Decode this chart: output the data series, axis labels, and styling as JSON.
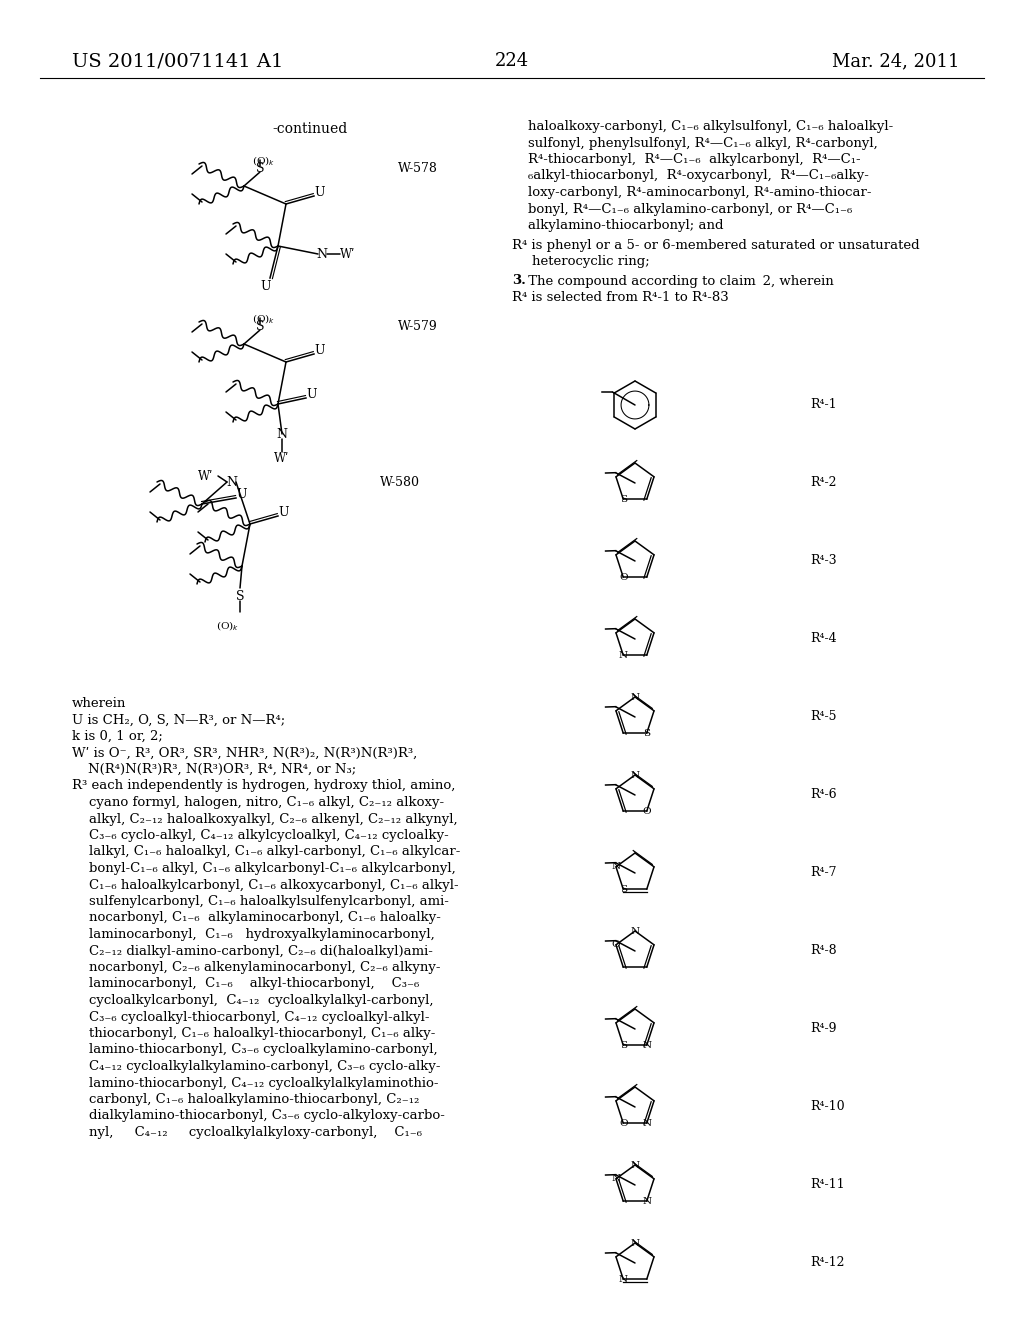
{
  "page_number": "224",
  "patent_number": "US 2011/0071141 A1",
  "date": "Mar. 24, 2011",
  "bg": "#ffffff",
  "tc": "#000000",
  "continued_label": "-continued",
  "w578_label": "W-578",
  "w579_label": "W-579",
  "w580_label": "W-580",
  "right_text_lines": [
    "haloalkoxy-carbonyl, C₁₋₆ alkylsulfonyl, C₁₋₆ haloalkyl-",
    "sulfonyl, phenylsulfonyl, R⁴—C₁₋₆ alkyl, R⁴-carbonyl,",
    "R⁴-thiocarbonyl,  R⁴—C₁₋₆  alkylcarbonyl,  R⁴—C₁-",
    "₆alkyl-thiocarbonyl,  R⁴-oxycarbonyl,  R⁴—C₁₋₆alky-",
    "loxy-carbonyl, R⁴-aminocarbonyl, R⁴-amino-thiocar-",
    "bonyl, R⁴—C₁₋₆ alkylamino-carbonyl, or R⁴—C₁₋₆",
    "alkylamino-thiocarbonyl; and"
  ],
  "r4_phenyl_line": "R⁴ is phenyl or a 5- or 6-membered saturated or unsaturated",
  "r4_phenyl_line2": "    heterocyclic ring;",
  "claim3_line": "3. The compound according to claim 2, wherein",
  "r4_selected": "R⁴ is selected from R⁴-1 to R⁴-83",
  "wherein_text": "wherein",
  "u_text": "U is CH₂, O, S, N—R³, or N—R⁴;",
  "k_text": "k is 0, 1 or, 2;",
  "w_text": "Wʹ is O⁻, R³, OR³, SR³, NHR³, N(R³)₂, N(R³)N(R³)R³,",
  "w_text2": "    N(R⁴)N(R³)R³, N(R³)OR³, R⁴, NR⁴, or N₃;",
  "r3_text_lines": [
    "R³ each independently is hydrogen, hydroxy thiol, amino,",
    "    cyano formyl, halogen, nitro, C₁₋₆ alkyl, C₂₋₁₂ alkoxy-",
    "    alkyl, C₂₋₁₂ haloalkoxyalkyl, C₂₋₆ alkenyl, C₂₋₁₂ alkynyl,",
    "    C₃₋₆ cyclo-alkyl, C₄₋₁₂ alkylcycloalkyl, C₄₋₁₂ cycloalky-",
    "    lalkyl, C₁₋₆ haloalkyl, C₁₋₆ alkyl-carbonyl, C₁₋₆ alkylcar-",
    "    bonyl-C₁₋₆ alkyl, C₁₋₆ alkylcarbonyl-C₁₋₆ alkylcarbonyl,",
    "    C₁₋₆ haloalkylcarbonyl, C₁₋₆ alkoxycarbonyl, C₁₋₆ alkyl-",
    "    sulfenylcarbonyl, C₁₋₆ haloalkylsulfenylcarbonyl, ami-",
    "    nocarbonyl, C₁₋₆  alkylaminocarbonyl, C₁₋₆ haloalky-",
    "    laminocarbonyl,  C₁₋₆   hydroxyalkylaminocarbonyl,",
    "    C₂₋₁₂ dialkyl-amino-carbonyl, C₂₋₆ di(haloalkyl)ami-",
    "    nocarbonyl, C₂₋₆ alkenylaminocarbonyl, C₂₋₆ alkyny-",
    "    laminocarbonyl,  C₁₋₆    alkyl-thiocarbonyl,    C₃₋₆",
    "    cycloalkylcarbonyl,  C₄₋₁₂  cycloalkylalkyl-carbonyl,",
    "    C₃₋₆ cycloalkyl-thiocarbonyl, C₄₋₁₂ cycloalkyl-alkyl-",
    "    thiocarbonyl, C₁₋₆ haloalkyl-thiocarbonyl, C₁₋₆ alky-",
    "    lamino-thiocarbonyl, C₃₋₆ cycloalkylamino-carbonyl,",
    "    C₄₋₁₂ cycloalkylalkylamino-carbonyl, C₃₋₆ cyclo-alky-",
    "    lamino-thiocarbonyl, C₄₋₁₂ cycloalkylalkylaminothio-",
    "    carbonyl, C₁₋₆ haloalkylamino-thiocarbonyl, C₂₋₁₂",
    "    dialkylamino-thiocarbonyl, C₃₋₆ cyclo-alkyloxy-carbo-",
    "    nyl,     C₄₋₁₂     cycloalkylalkyloxy-carbonyl,    C₁₋₆"
  ]
}
